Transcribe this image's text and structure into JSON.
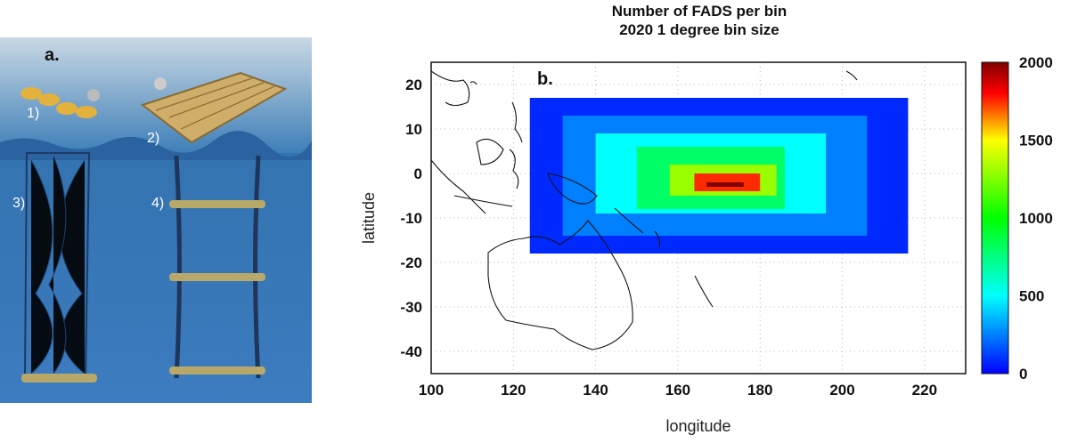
{
  "panel_a": {
    "label": "a.",
    "items": [
      "1)",
      "2)",
      "3)",
      "4)"
    ]
  },
  "chart_data": {
    "type": "heatmap",
    "panel_label": "b.",
    "title": "Number of FADS per bin",
    "subtitle": "2020 1 degree bin size",
    "xlabel": "longitude",
    "ylabel": "latitude",
    "xlim": [
      100,
      230
    ],
    "ylim": [
      -45,
      25
    ],
    "xticks": [
      100,
      120,
      140,
      160,
      180,
      200,
      220
    ],
    "yticks": [
      20,
      10,
      0,
      -10,
      -20,
      -30,
      -40
    ],
    "grid": true,
    "colorbar": {
      "min": 0,
      "max": 2000,
      "ticks": [
        2000,
        1500,
        1000,
        500,
        0
      ]
    },
    "regions": [
      {
        "lon": [
          124,
          216
        ],
        "lat": [
          -18,
          17
        ],
        "value": 80
      },
      {
        "lon": [
          132,
          206
        ],
        "lat": [
          -14,
          13
        ],
        "value": 250
      },
      {
        "lon": [
          140,
          196
        ],
        "lat": [
          -9,
          9
        ],
        "value": 500
      },
      {
        "lon": [
          150,
          186
        ],
        "lat": [
          -8,
          6
        ],
        "value": 800
      },
      {
        "lon": [
          158,
          184
        ],
        "lat": [
          -5,
          2
        ],
        "value": 1300
      },
      {
        "lon": [
          164,
          180
        ],
        "lat": [
          -4,
          0
        ],
        "value": 1750
      },
      {
        "lon": [
          167,
          176
        ],
        "lat": [
          -3,
          -2
        ],
        "value": 2000
      }
    ]
  }
}
